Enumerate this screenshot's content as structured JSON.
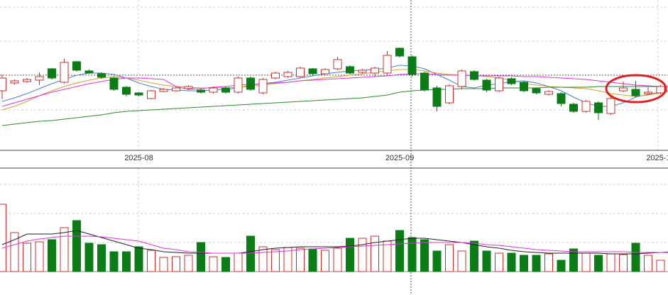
{
  "chart_data": [
    {
      "type": "candlestick",
      "categories": [
        null,
        null,
        null,
        null,
        null,
        null,
        null,
        null,
        null,
        null,
        null,
        "2025-08",
        null,
        null,
        null,
        null,
        null,
        null,
        null,
        null,
        null,
        null,
        null,
        null,
        null,
        null,
        null,
        null,
        null,
        null,
        null,
        null,
        "2025-09",
        null,
        null,
        null,
        null,
        null,
        null,
        null,
        null,
        null,
        null,
        null,
        null,
        null,
        null,
        null,
        null,
        null,
        null,
        null,
        null,
        "2025-10",
        null
      ],
      "open": [
        84,
        95,
        97,
        99,
        115,
        96,
        125,
        112,
        108,
        102,
        89,
        81,
        73,
        83,
        84,
        87,
        85,
        82,
        88,
        82,
        102,
        81,
        102,
        104,
        104,
        115,
        108,
        115,
        118,
        110,
        109,
        109,
        144,
        132,
        109,
        88,
        67,
        90,
        111,
        99,
        84,
        101,
        96,
        87,
        79,
        80,
        65,
        55,
        67,
        52,
        84,
        86,
        80,
        81,
        122
      ],
      "close": [
        102,
        98,
        100,
        104,
        102,
        124,
        113,
        109,
        103,
        86,
        79,
        78,
        84,
        86,
        88,
        90,
        82,
        88,
        82,
        102,
        86,
        100,
        109,
        110,
        116,
        108,
        114,
        128,
        109,
        113,
        116,
        134,
        133,
        107,
        85,
        62,
        91,
        112,
        100,
        85,
        102,
        94,
        84,
        81,
        83,
        66,
        55,
        69,
        53,
        73,
        88,
        77,
        82,
        90,
        154
      ],
      "high": [
        107,
        100,
        102,
        110,
        116,
        129,
        126,
        114,
        110,
        104,
        91,
        82,
        85,
        88,
        90,
        92,
        87,
        90,
        90,
        104,
        104,
        102,
        111,
        112,
        118,
        116,
        116,
        132,
        120,
        115,
        118,
        140,
        145,
        134,
        111,
        91,
        93,
        114,
        113,
        101,
        104,
        103,
        98,
        89,
        85,
        82,
        67,
        71,
        69,
        77,
        97,
        98,
        89,
        92,
        160
      ],
      "low": [
        72,
        93,
        95,
        92,
        100,
        94,
        111,
        108,
        101,
        84,
        76,
        76,
        72,
        82,
        83,
        85,
        80,
        80,
        80,
        80,
        84,
        79,
        100,
        102,
        102,
        106,
        106,
        113,
        107,
        108,
        104,
        107,
        131,
        104,
        83,
        55,
        65,
        86,
        98,
        82,
        82,
        92,
        82,
        79,
        77,
        62,
        53,
        53,
        43,
        50,
        82,
        75,
        78,
        79,
        120
      ],
      "up_color": "#c8302f",
      "down_color": "#0a7d16",
      "ylim": [
        0,
        212
      ],
      "series": [
        {
          "name": "MA5",
          "color": "#4a7fd0",
          "values": [
            69,
            74,
            80,
            87,
            94,
            100,
            106,
            109,
            109,
            107,
            102,
            95,
            90,
            86,
            85,
            84,
            84,
            85,
            86,
            88,
            92,
            94,
            96,
            99,
            102,
            105,
            108,
            110,
            112,
            113,
            114,
            116,
            120,
            119,
            115,
            107,
            99,
            90,
            88,
            92,
            94,
            97,
            98,
            95,
            90,
            84,
            75,
            67,
            62,
            62,
            67,
            75,
            79,
            82,
            86
          ]
        },
        {
          "name": "MA10",
          "color": "#d4a030",
          "values": [
            57,
            62,
            69,
            77,
            84,
            90,
            95,
            99,
            102,
            104,
            102,
            99,
            95,
            92,
            90,
            89,
            88,
            88,
            88,
            89,
            90,
            92,
            94,
            96,
            98,
            100,
            102,
            104,
            106,
            108,
            110,
            112,
            114,
            114,
            112,
            109,
            107,
            106,
            106,
            104,
            102,
            99,
            94,
            92,
            90,
            89,
            88,
            87,
            84,
            80,
            78,
            76,
            78,
            81,
            84
          ]
        },
        {
          "name": "MA20",
          "color": "#e030e0",
          "values": [
            62,
            67,
            72,
            77,
            82,
            86,
            90,
            94,
            97,
            100,
            102,
            102,
            101,
            100,
            90,
            86,
            87,
            89,
            90,
            92,
            93,
            94,
            95,
            96,
            98,
            99,
            100,
            101,
            102,
            103,
            104,
            105,
            107,
            108,
            108,
            107,
            106,
            106,
            105,
            105,
            105,
            105,
            104,
            104,
            103,
            102,
            101,
            100,
            98,
            96,
            94,
            92,
            91,
            90,
            90
          ]
        },
        {
          "name": "MA60",
          "color": "#2a8a2a",
          "values": [
            35,
            37,
            39,
            41,
            42,
            44,
            46,
            48,
            50,
            53,
            55,
            56,
            57,
            58,
            59,
            60,
            61,
            62,
            63,
            64,
            65,
            66,
            67,
            68,
            69,
            70,
            71,
            72,
            73,
            74,
            76,
            78,
            82,
            84,
            85,
            86,
            86,
            87,
            87,
            87,
            88,
            88,
            88,
            88,
            89,
            89,
            89,
            89,
            90,
            90,
            90,
            90,
            90,
            90,
            90
          ]
        }
      ]
    },
    {
      "type": "bar",
      "values": [
        95,
        55,
        40,
        42,
        45,
        62,
        72,
        40,
        38,
        28,
        28,
        35,
        30,
        20,
        21,
        23,
        41,
        21,
        20,
        26,
        50,
        35,
        31,
        34,
        33,
        32,
        30,
        33,
        47,
        47,
        50,
        43,
        58,
        48,
        45,
        29,
        38,
        29,
        43,
        29,
        26,
        26,
        23,
        23,
        25,
        16,
        32,
        26,
        23,
        25,
        24,
        40,
        23,
        16,
        25
      ],
      "ylim": [
        0,
        146
      ],
      "series": [
        {
          "name": "VMA5",
          "color": "#222222",
          "values": [
            38,
            45,
            53,
            53,
            53,
            55,
            58,
            53,
            48,
            43,
            38,
            33,
            31,
            28,
            27,
            26,
            26,
            26,
            26,
            26,
            28,
            31,
            33,
            34,
            35,
            35,
            35,
            35,
            36,
            38,
            41,
            43,
            45,
            47,
            47,
            45,
            43,
            41,
            38,
            35,
            33,
            30,
            28,
            27,
            26,
            26,
            26,
            26,
            26,
            25,
            25,
            25,
            26,
            27,
            28
          ]
        },
        {
          "name": "VMA10",
          "color": "#e030e0",
          "values": [
            33,
            38,
            43,
            46,
            48,
            50,
            50,
            50,
            49,
            47,
            45,
            43,
            38,
            33,
            31,
            28,
            27,
            26,
            26,
            26,
            26,
            27,
            28,
            29,
            31,
            32,
            33,
            34,
            35,
            36,
            37,
            38,
            39,
            40,
            41,
            41,
            41,
            41,
            40,
            38,
            37,
            35,
            33,
            31,
            30,
            29,
            28,
            28,
            28,
            28,
            28,
            27,
            27,
            27,
            27
          ]
        }
      ]
    }
  ]
}
